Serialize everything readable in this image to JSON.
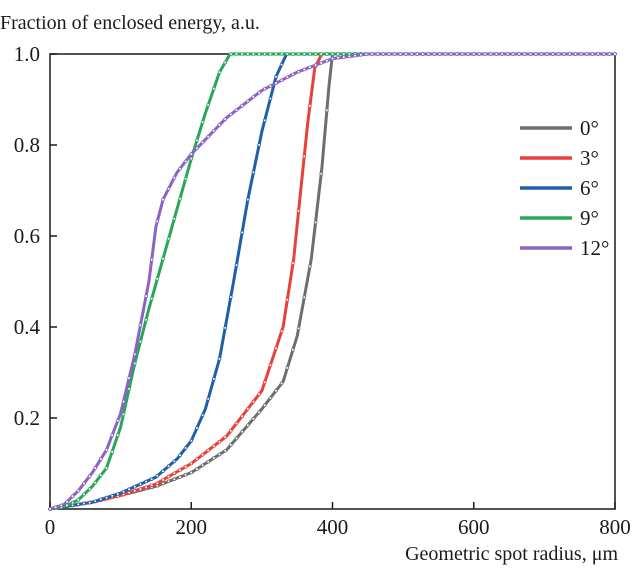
{
  "chart_data": {
    "type": "line",
    "title": "",
    "xlabel": "Geometric spot radius, μm",
    "ylabel": "Fraction of enclosed energy, a.u.",
    "xlim": [
      0,
      800
    ],
    "ylim": [
      0,
      1.0
    ],
    "x_ticks": [
      "0",
      "200",
      "400",
      "600",
      "800"
    ],
    "y_ticks": [
      "0.2",
      "0.4",
      "0.6",
      "0.8",
      "1.0"
    ],
    "grid": false,
    "legend_position": "right",
    "series": [
      {
        "name": "0°",
        "color": "#6e6e6e",
        "x": [
          0,
          20,
          60,
          100,
          150,
          200,
          250,
          300,
          330,
          350,
          370,
          385,
          395,
          400,
          450,
          800
        ],
        "y": [
          0,
          0.005,
          0.015,
          0.03,
          0.05,
          0.08,
          0.13,
          0.22,
          0.28,
          0.38,
          0.55,
          0.75,
          0.93,
          1.0,
          1.0,
          1.0
        ]
      },
      {
        "name": "3°",
        "color": "#e8413c",
        "x": [
          0,
          20,
          60,
          100,
          150,
          200,
          250,
          300,
          330,
          345,
          355,
          365,
          375,
          385,
          450,
          800
        ],
        "y": [
          0,
          0.005,
          0.015,
          0.03,
          0.055,
          0.1,
          0.16,
          0.26,
          0.4,
          0.55,
          0.7,
          0.85,
          0.97,
          1.0,
          1.0,
          1.0
        ]
      },
      {
        "name": "6°",
        "color": "#1f5fa8",
        "x": [
          0,
          20,
          60,
          100,
          150,
          180,
          200,
          220,
          240,
          260,
          280,
          300,
          320,
          335,
          450,
          800
        ],
        "y": [
          0,
          0.005,
          0.015,
          0.035,
          0.07,
          0.11,
          0.15,
          0.22,
          0.33,
          0.5,
          0.68,
          0.83,
          0.95,
          1.0,
          1.0,
          1.0
        ]
      },
      {
        "name": "9°",
        "color": "#2aa65a",
        "x": [
          0,
          20,
          40,
          60,
          80,
          100,
          120,
          140,
          160,
          180,
          200,
          220,
          240,
          255,
          450,
          800
        ],
        "y": [
          0,
          0.005,
          0.02,
          0.05,
          0.09,
          0.18,
          0.32,
          0.44,
          0.55,
          0.66,
          0.77,
          0.87,
          0.96,
          1.0,
          1.0,
          1.0
        ]
      },
      {
        "name": "12°",
        "color": "#8a63c4",
        "x": [
          0,
          20,
          40,
          60,
          80,
          100,
          120,
          140,
          150,
          160,
          180,
          200,
          250,
          300,
          350,
          400,
          450,
          800
        ],
        "y": [
          0,
          0.01,
          0.04,
          0.08,
          0.13,
          0.21,
          0.34,
          0.5,
          0.62,
          0.68,
          0.74,
          0.78,
          0.86,
          0.92,
          0.96,
          0.99,
          1.0,
          1.0
        ]
      }
    ]
  }
}
